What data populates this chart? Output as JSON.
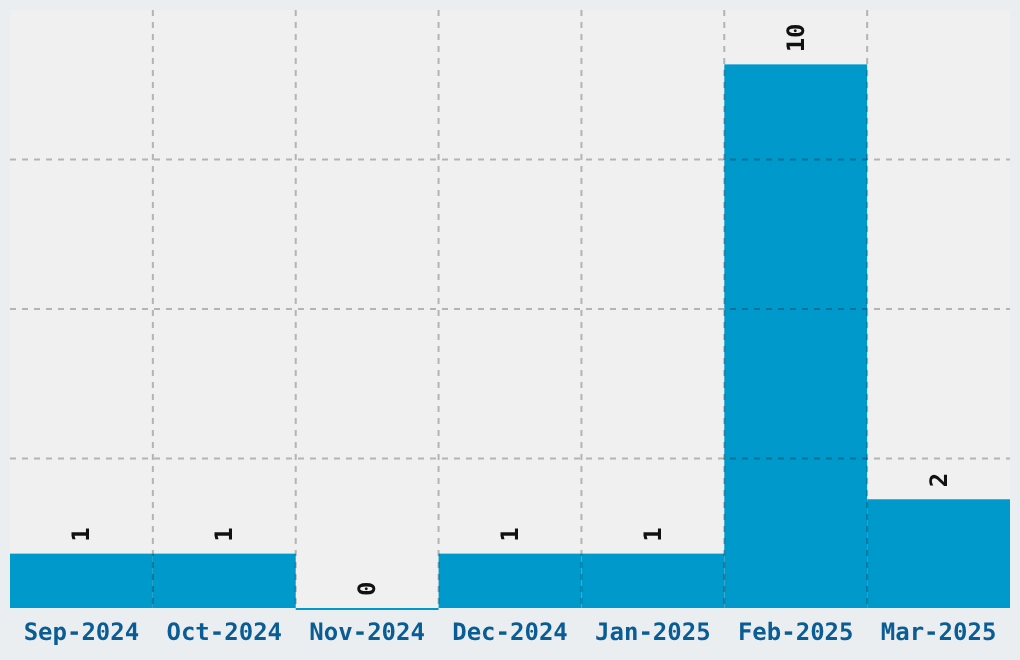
{
  "chart_data": {
    "type": "bar",
    "categories": [
      "Sep-2024",
      "Oct-2024",
      "Nov-2024",
      "Dec-2024",
      "Jan-2025",
      "Feb-2025",
      "Mar-2025"
    ],
    "values": [
      1,
      1,
      0,
      1,
      1,
      10,
      2
    ],
    "color": "#0099cc",
    "data_labels": true,
    "ylim": [
      0,
      11
    ],
    "yticks": [
      {
        "value": 2.75,
        "label": null
      },
      {
        "value": 5.5,
        "label": null
      },
      {
        "value": 8.25,
        "label": null
      }
    ],
    "tick_labels": "x",
    "grid": true
  }
}
